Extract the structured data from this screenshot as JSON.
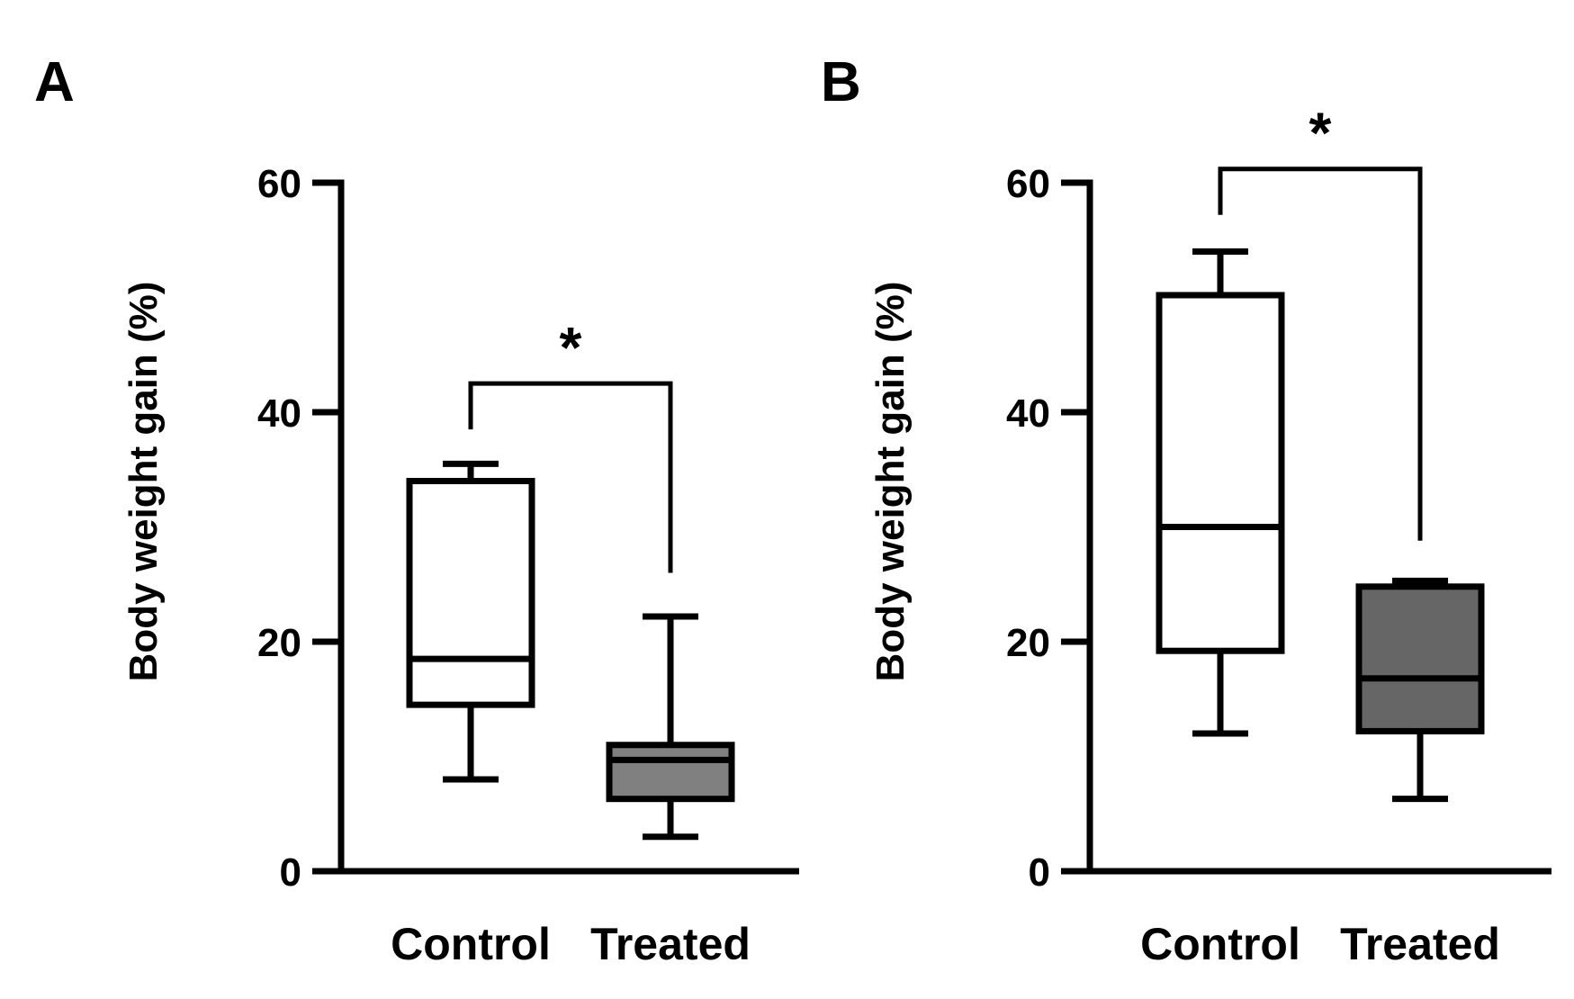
{
  "chart_data": [
    {
      "type": "box",
      "panel": "A",
      "ylabel": "Body weight gain (%)",
      "xlabel": "",
      "ylim": [
        0,
        60
      ],
      "yticks": [
        0,
        20,
        40,
        60
      ],
      "categories": [
        "Control",
        "Treated"
      ],
      "boxes": [
        {
          "name": "Control",
          "min": 8,
          "q1": 14.5,
          "median": 18.5,
          "q3": 34,
          "max": 35.5,
          "fill": "#ffffff"
        },
        {
          "name": "Treated",
          "min": 3,
          "q1": 6.3,
          "median": 9.7,
          "q3": 11,
          "max": 22.2,
          "fill": "#808080"
        }
      ],
      "significance": {
        "label": "*",
        "from": "Control",
        "to": "Treated",
        "bracket_y": 42.5,
        "left_y": 38.5,
        "right_y": 26
      }
    },
    {
      "type": "box",
      "panel": "B",
      "ylabel": "Body weight gain (%)",
      "xlabel": "",
      "ylim": [
        0,
        60
      ],
      "yticks": [
        0,
        20,
        40,
        60
      ],
      "categories": [
        "Control",
        "Treated"
      ],
      "boxes": [
        {
          "name": "Control",
          "min": 12,
          "q1": 19.2,
          "median": 30,
          "q3": 50.2,
          "max": 54,
          "fill": "#ffffff"
        },
        {
          "name": "Treated",
          "min": 6.3,
          "q1": 12.2,
          "median": 16.8,
          "q3": 24.8,
          "max": 25.3,
          "fill": "#666666"
        }
      ],
      "significance": {
        "label": "*",
        "from": "Control",
        "to": "Treated",
        "bracket_y": 61.2,
        "left_y": 57.2,
        "right_y": 28.8
      }
    }
  ]
}
